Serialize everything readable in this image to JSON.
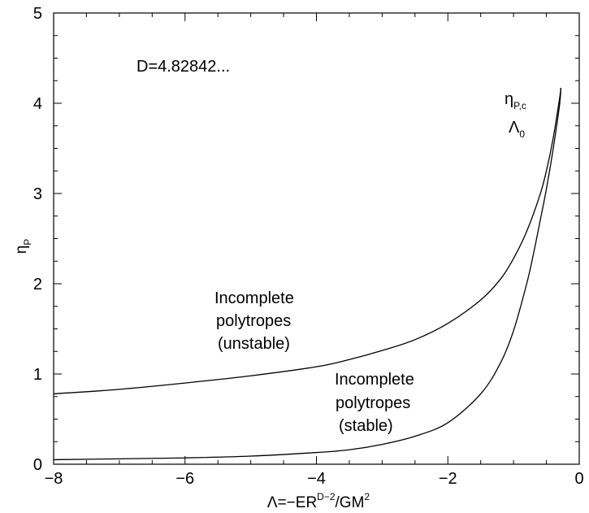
{
  "chart_data": {
    "type": "line",
    "title": "",
    "xlabel": {
      "prefix": "Λ=−ER",
      "sup1": "D−2",
      "middle": "/GM",
      "sup2": "2"
    },
    "ylabel": {
      "main": "η",
      "sub": "P"
    },
    "xlim": [
      -8,
      0
    ],
    "ylim": [
      0,
      5
    ],
    "xticks": [
      -8,
      -6,
      -4,
      -2,
      0
    ],
    "xtick_labels": [
      "−8",
      "−6",
      "−4",
      "−2",
      "0"
    ],
    "yticks": [
      0,
      1,
      2,
      3,
      4,
      5
    ],
    "ytick_labels": [
      "0",
      "1",
      "2",
      "3",
      "4",
      "5"
    ],
    "x_minor_step": 0.5,
    "y_minor_step": 0.25,
    "grid": false,
    "annotations": {
      "dimension": "D=4.82842...",
      "critical_eta": {
        "main": "η",
        "sub": "P,c"
      },
      "critical_lambda": {
        "main": "Λ",
        "sub": "0"
      },
      "unstable_lines": [
        "Incomplete",
        "polytropes",
        "(unstable)"
      ],
      "stable_lines": [
        "Incomplete",
        "polytropes",
        "(stable)"
      ]
    },
    "series": [
      {
        "x": [
          -8.0,
          -7.0,
          -6.0,
          -5.0,
          -4.0,
          -3.5,
          -3.0,
          -2.5,
          -2.0,
          -1.5,
          -1.2,
          -1.0,
          -0.8,
          -0.6,
          -0.5,
          -0.4,
          -0.3,
          -0.28
        ],
        "y": [
          0.78,
          0.83,
          0.9,
          0.98,
          1.08,
          1.16,
          1.26,
          1.38,
          1.56,
          1.82,
          2.05,
          2.28,
          2.58,
          2.98,
          3.25,
          3.6,
          4.05,
          4.17
        ]
      },
      {
        "x": [
          -8.0,
          -7.0,
          -6.0,
          -5.0,
          -4.0,
          -3.5,
          -3.0,
          -2.5,
          -2.0,
          -1.5,
          -1.2,
          -1.0,
          -0.8,
          -0.7,
          -0.6,
          -0.5,
          -0.4,
          -0.3,
          -0.28
        ],
        "y": [
          0.05,
          0.06,
          0.07,
          0.09,
          0.13,
          0.16,
          0.22,
          0.31,
          0.46,
          0.78,
          1.12,
          1.48,
          2.0,
          2.32,
          2.68,
          3.05,
          3.48,
          3.98,
          4.17
        ]
      }
    ]
  }
}
